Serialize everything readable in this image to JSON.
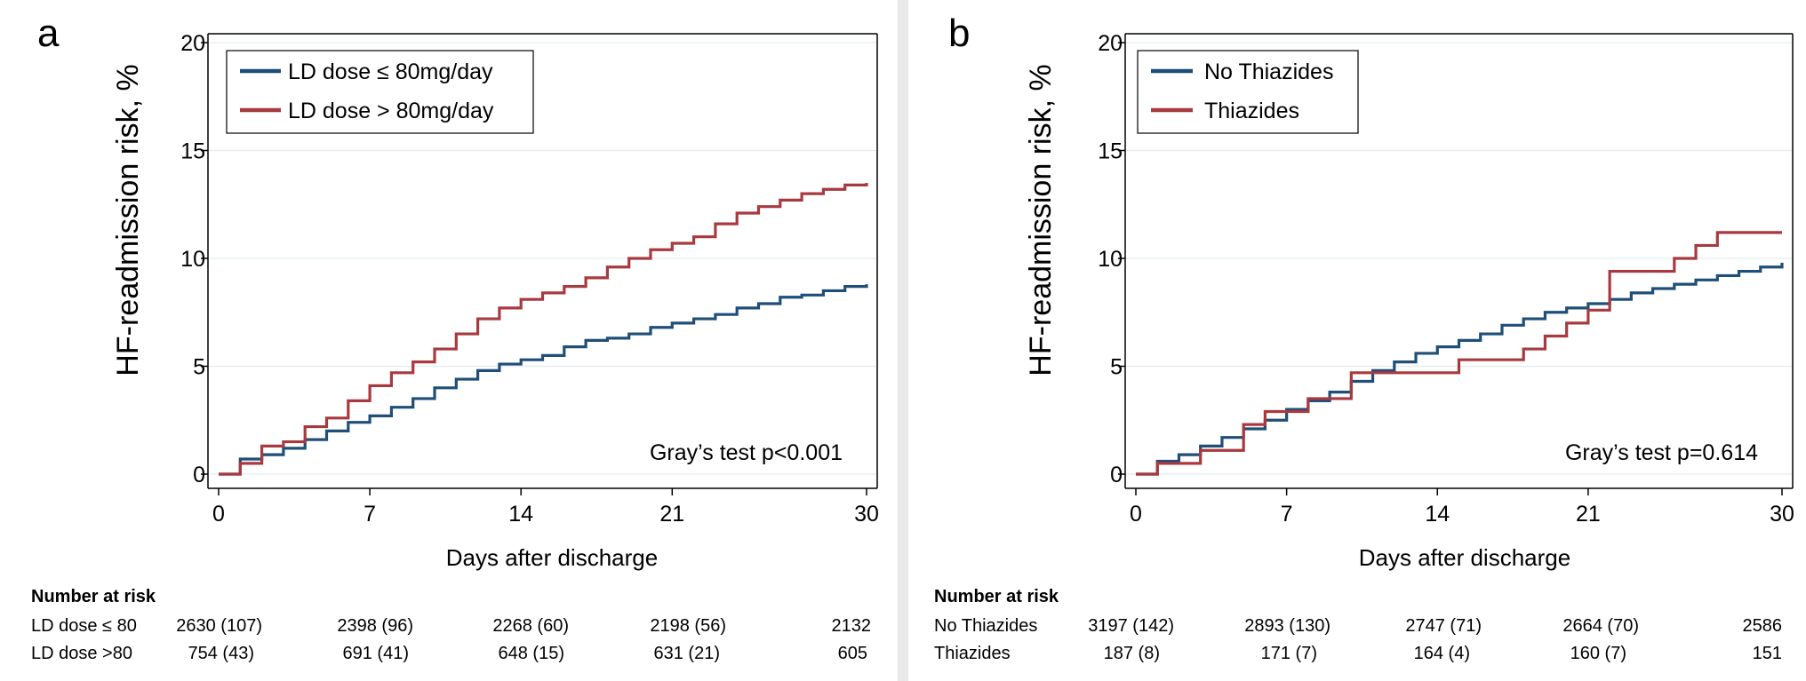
{
  "chart_data": [
    {
      "type": "line",
      "step": true,
      "panel_label": "a",
      "xlabel": "Days after discharge",
      "ylabel": "HF-readmission risk, %",
      "xlim": [
        0,
        30
      ],
      "ylim": [
        0,
        20
      ],
      "xticks": [
        0,
        7,
        14,
        21,
        30
      ],
      "yticks": [
        0,
        5,
        10,
        15,
        20
      ],
      "grid": true,
      "legend_position": "top-left",
      "annotation": "Gray’s test p<0.001",
      "colors": {
        "blue": "#1f4e79",
        "red": "#a83a3f"
      },
      "series": [
        {
          "name": "LD dose ≤ 80mg/day",
          "color": "#1f4e79",
          "x": [
            0,
            1,
            2,
            3,
            4,
            5,
            6,
            7,
            8,
            9,
            10,
            11,
            12,
            13,
            14,
            15,
            16,
            17,
            18,
            19,
            20,
            21,
            22,
            23,
            24,
            25,
            26,
            27,
            28,
            29,
            30
          ],
          "y": [
            0,
            0.7,
            0.9,
            1.2,
            1.6,
            2.0,
            2.4,
            2.7,
            3.1,
            3.5,
            4.0,
            4.4,
            4.8,
            5.1,
            5.3,
            5.5,
            5.9,
            6.2,
            6.3,
            6.5,
            6.8,
            7.0,
            7.2,
            7.4,
            7.7,
            7.9,
            8.2,
            8.3,
            8.5,
            8.7,
            8.8
          ]
        },
        {
          "name": "LD dose > 80mg/day",
          "color": "#a83a3f",
          "x": [
            0,
            1,
            2,
            3,
            4,
            5,
            6,
            7,
            8,
            9,
            10,
            11,
            12,
            13,
            14,
            15,
            16,
            17,
            18,
            19,
            20,
            21,
            22,
            23,
            24,
            25,
            26,
            27,
            28,
            29,
            30
          ],
          "y": [
            0,
            0.5,
            1.3,
            1.5,
            2.2,
            2.6,
            3.4,
            4.1,
            4.7,
            5.2,
            5.8,
            6.5,
            7.2,
            7.7,
            8.1,
            8.4,
            8.7,
            9.1,
            9.6,
            10.0,
            10.4,
            10.7,
            11.0,
            11.6,
            12.1,
            12.4,
            12.7,
            13.0,
            13.2,
            13.4,
            13.5
          ]
        }
      ],
      "risk_table": {
        "heading": "Number at risk",
        "rows": [
          {
            "label": "LD dose ≤ 80",
            "values": [
              "2630 (107)",
              "2398 (96)",
              "2268 (60)",
              "2198 (56)",
              "2132"
            ]
          },
          {
            "label": "LD dose >80",
            "values": [
              "754 (43)",
              "691 (41)",
              "648 (15)",
              "631 (21)",
              "605"
            ]
          }
        ]
      }
    },
    {
      "type": "line",
      "step": true,
      "panel_label": "b",
      "xlabel": "Days after discharge",
      "ylabel": "HF-readmission risk, %",
      "xlim": [
        0,
        30
      ],
      "ylim": [
        0,
        20
      ],
      "xticks": [
        0,
        7,
        14,
        21,
        30
      ],
      "yticks": [
        0,
        5,
        10,
        15,
        20
      ],
      "grid": true,
      "legend_position": "top-left",
      "annotation": "Gray’s test p=0.614",
      "colors": {
        "blue": "#1f4e79",
        "red": "#a83a3f"
      },
      "series": [
        {
          "name": "No Thiazides",
          "color": "#1f4e79",
          "x": [
            0,
            1,
            2,
            3,
            4,
            5,
            6,
            7,
            8,
            9,
            10,
            11,
            12,
            13,
            14,
            15,
            16,
            17,
            18,
            19,
            20,
            21,
            22,
            23,
            24,
            25,
            26,
            27,
            28,
            29,
            30
          ],
          "y": [
            0,
            0.6,
            0.9,
            1.3,
            1.7,
            2.1,
            2.5,
            3.0,
            3.4,
            3.8,
            4.3,
            4.8,
            5.2,
            5.6,
            5.9,
            6.2,
            6.5,
            6.9,
            7.2,
            7.5,
            7.7,
            7.9,
            8.1,
            8.4,
            8.6,
            8.8,
            9.0,
            9.2,
            9.4,
            9.6,
            9.8
          ]
        },
        {
          "name": "Thiazides",
          "color": "#a83a3f",
          "x": [
            0,
            1,
            3,
            5,
            6,
            8,
            10,
            11,
            14,
            15,
            16,
            18,
            19,
            20,
            21,
            22,
            23,
            24,
            25,
            26,
            27,
            28,
            29,
            30
          ],
          "y": [
            0,
            0.5,
            1.1,
            2.3,
            2.9,
            3.5,
            4.7,
            4.7,
            4.7,
            5.3,
            5.3,
            5.8,
            6.4,
            7.0,
            7.6,
            9.4,
            9.4,
            9.4,
            10.0,
            10.6,
            11.2,
            11.2,
            11.2,
            11.2
          ]
        }
      ],
      "risk_table": {
        "heading": "Number at risk",
        "rows": [
          {
            "label": "No Thiazides",
            "values": [
              "3197 (142)",
              "2893 (130)",
              "2747 (71)",
              "2664 (70)",
              "2586"
            ]
          },
          {
            "label": "Thiazides",
            "values": [
              "187 (8)",
              "171 (7)",
              "164 (4)",
              "160 (7)",
              "151"
            ]
          }
        ]
      }
    }
  ]
}
